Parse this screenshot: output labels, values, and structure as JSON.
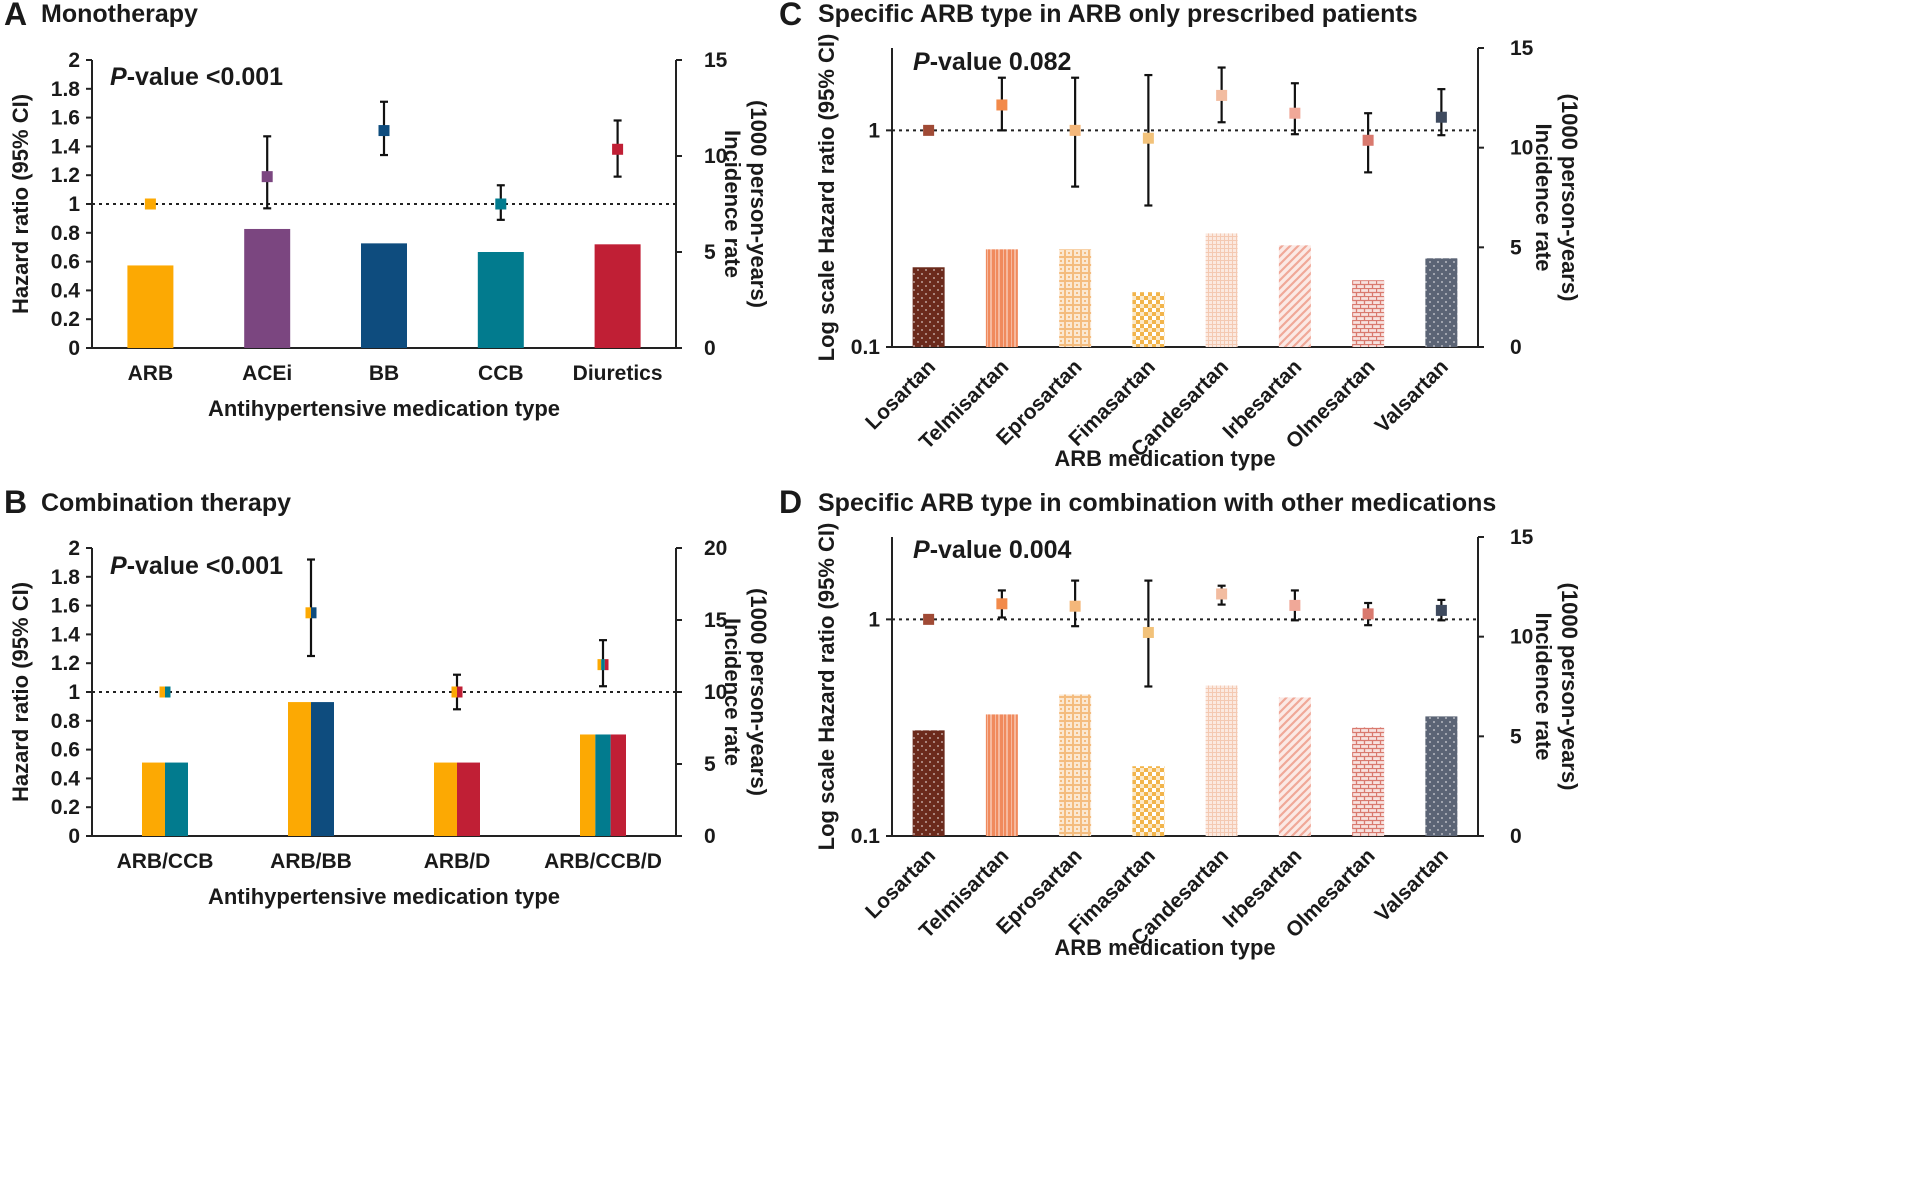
{
  "chart_data": [
    {
      "id": "A",
      "letter": "A",
      "title": "Monotherapy",
      "type": "bar",
      "scale": "linear",
      "pvalue_label": "-value <0.001",
      "pvalue_prefix": "P",
      "xlabel": "Antihypertensive medication type",
      "ylabel": "Hazard ratio (95% CI)",
      "y2label_line1": "Incidence rate",
      "y2label_line2": "(1000 person-years)",
      "ylim": [
        0,
        2
      ],
      "yticks": [
        "0",
        "0.2",
        "0.4",
        "0.6",
        "0.8",
        "1",
        "1.2",
        "1.4",
        "1.6",
        "1.8",
        "2"
      ],
      "y2lim": [
        0,
        15
      ],
      "y2ticks": [
        "0",
        "5",
        "10",
        "15"
      ],
      "reference_line": 1,
      "categories": [
        "ARB",
        "ACEi",
        "BB",
        "CCB",
        "Diuretics"
      ],
      "incidence_rate": [
        4.3,
        6.2,
        5.45,
        5.0,
        5.4
      ],
      "bar_colors": [
        [
          "#fca903"
        ],
        [
          "#7b4680"
        ],
        [
          "#0e4c7e"
        ],
        [
          "#027b8e"
        ],
        [
          "#c01f35"
        ]
      ],
      "hr": [
        1.0,
        1.19,
        1.51,
        1.0,
        1.38
      ],
      "ci_low": [
        1.0,
        0.97,
        1.34,
        0.89,
        1.19
      ],
      "ci_high": [
        1.0,
        1.47,
        1.71,
        1.13,
        1.58
      ],
      "marker_colors": [
        [
          "#fca903"
        ],
        [
          "#7b4680"
        ],
        [
          "#0e4c7e"
        ],
        [
          "#027b8e"
        ],
        [
          "#c01f35"
        ]
      ]
    },
    {
      "id": "B",
      "letter": "B",
      "title": "Combination therapy",
      "type": "bar",
      "scale": "linear",
      "pvalue_label": "-value <0.001",
      "pvalue_prefix": "P",
      "xlabel": "Antihypertensive medication type",
      "ylabel": "Hazard ratio (95% CI)",
      "y2label_line1": "Incidence rate",
      "y2label_line2": "(1000 person-years)",
      "ylim": [
        0,
        2
      ],
      "yticks": [
        "0",
        "0.2",
        "0.4",
        "0.6",
        "0.8",
        "1",
        "1.2",
        "1.4",
        "1.6",
        "1.8",
        "2"
      ],
      "y2lim": [
        0,
        20
      ],
      "y2ticks": [
        "0",
        "5",
        "10",
        "15",
        "20"
      ],
      "reference_line": 1,
      "categories": [
        "ARB/CCB",
        "ARB/BB",
        "ARB/D",
        "ARB/CCB/D"
      ],
      "incidence_rate": [
        5.1,
        9.3,
        5.1,
        7.05
      ],
      "bar_colors": [
        [
          "#fca903",
          "#027b8e"
        ],
        [
          "#fca903",
          "#0e4c7e"
        ],
        [
          "#fca903",
          "#c01f35"
        ],
        [
          "#fca903",
          "#027b8e",
          "#c01f35"
        ]
      ],
      "hr": [
        1.0,
        1.55,
        1.0,
        1.19
      ],
      "ci_low": [
        1.0,
        1.25,
        0.88,
        1.04
      ],
      "ci_high": [
        1.0,
        1.92,
        1.12,
        1.36
      ],
      "marker_colors": [
        [
          "#fca903",
          "#027b8e"
        ],
        [
          "#fca903",
          "#0e4c7e"
        ],
        [
          "#fca903",
          "#c01f35"
        ],
        [
          "#fca903",
          "#027b8e",
          "#c01f35"
        ]
      ]
    },
    {
      "id": "C",
      "letter": "C",
      "title": "Specific ARB type in ARB only prescribed patients",
      "type": "bar",
      "scale": "log",
      "pvalue_label": "-value 0.082",
      "pvalue_prefix": "P",
      "xlabel": "ARB medication type",
      "ylabel": "Log scale Hazard ratio (95% CI)",
      "y2label_line1": "Incidence rate",
      "y2label_line2": "(1000 person-years)",
      "ylim": [
        0.1,
        2.4
      ],
      "yticks": [
        "0.1",
        "1"
      ],
      "ytick_values": [
        0.1,
        1
      ],
      "y2lim": [
        0,
        15
      ],
      "y2ticks": [
        "0",
        "5",
        "10",
        "15"
      ],
      "reference_line": 1,
      "categories": [
        "Losartan",
        "Telmisartan",
        "Eprosartan",
        "Fimasartan",
        "Candesartan",
        "Irbesartan",
        "Olmesartan",
        "Valsartan"
      ],
      "incidence_rate": [
        4.0,
        4.9,
        4.9,
        2.75,
        5.7,
        5.1,
        3.35,
        4.45
      ],
      "bar_colors": [
        [
          "#6b2a1c"
        ],
        [
          "#f08a5d"
        ],
        [
          "#f4bc7e"
        ],
        [
          "#f2b44a"
        ],
        [
          "#f4c9b2"
        ],
        [
          "#f0a898"
        ],
        [
          "#d9796e"
        ],
        [
          "#5b6475"
        ]
      ],
      "bar_patterns": [
        "dots",
        "vlines",
        "grid",
        "checker",
        "finegrid",
        "diag",
        "brick",
        "dots"
      ],
      "hr": [
        1.0,
        1.31,
        1.0,
        0.92,
        1.45,
        1.2,
        0.9,
        1.15
      ],
      "ci_low": [
        1.0,
        1.0,
        0.55,
        0.45,
        1.09,
        0.96,
        0.64,
        0.95
      ],
      "ci_high": [
        1.0,
        1.75,
        1.75,
        1.8,
        1.95,
        1.65,
        1.2,
        1.55
      ],
      "marker_colors": [
        [
          "#a04a35"
        ],
        [
          "#f28a4a"
        ],
        [
          "#f4b77a"
        ],
        [
          "#f2c27a"
        ],
        [
          "#f2bca0"
        ],
        [
          "#f0a898"
        ],
        [
          "#d9796e"
        ],
        [
          "#3e4a5e"
        ]
      ]
    },
    {
      "id": "D",
      "letter": "D",
      "title": "Specific ARB type in combination with other medications",
      "type": "bar",
      "scale": "log",
      "pvalue_label": "-value 0.004",
      "pvalue_prefix": "P",
      "xlabel": "ARB medication type",
      "ylabel": "Log scale Hazard ratio (95% CI)",
      "y2label_line1": "Incidence rate",
      "y2label_line2": "(1000 person-years)",
      "ylim": [
        0.1,
        2.4
      ],
      "yticks": [
        "0.1",
        "1"
      ],
      "ytick_values": [
        0.1,
        1
      ],
      "y2lim": [
        0,
        15
      ],
      "y2ticks": [
        "0",
        "5",
        "10",
        "15"
      ],
      "reference_line": 1,
      "categories": [
        "Losartan",
        "Telmisartan",
        "Eprosartan",
        "Fimasartan",
        "Candesartan",
        "Irbesartan",
        "Olmesartan",
        "Valsartan"
      ],
      "incidence_rate": [
        5.3,
        6.1,
        7.1,
        3.5,
        7.55,
        6.95,
        5.45,
        6.0
      ],
      "bar_colors": [
        [
          "#6b2a1c"
        ],
        [
          "#f08a5d"
        ],
        [
          "#f4bc7e"
        ],
        [
          "#f2b44a"
        ],
        [
          "#f4c9b2"
        ],
        [
          "#f0a898"
        ],
        [
          "#d9796e"
        ],
        [
          "#5b6475"
        ]
      ],
      "bar_patterns": [
        "dots",
        "vlines",
        "grid",
        "checker",
        "finegrid",
        "diag",
        "brick",
        "dots"
      ],
      "hr": [
        1.0,
        1.18,
        1.15,
        0.87,
        1.31,
        1.16,
        1.06,
        1.1
      ],
      "ci_low": [
        1.0,
        1.02,
        0.93,
        0.49,
        1.17,
        0.99,
        0.94,
        0.99
      ],
      "ci_high": [
        1.0,
        1.36,
        1.51,
        1.51,
        1.43,
        1.36,
        1.19,
        1.23
      ],
      "marker_colors": [
        [
          "#a04a35"
        ],
        [
          "#f28a4a"
        ],
        [
          "#f4b77a"
        ],
        [
          "#f2c27a"
        ],
        [
          "#f2bca0"
        ],
        [
          "#f0a898"
        ],
        [
          "#d9796e"
        ],
        [
          "#3e4a5e"
        ]
      ]
    }
  ]
}
